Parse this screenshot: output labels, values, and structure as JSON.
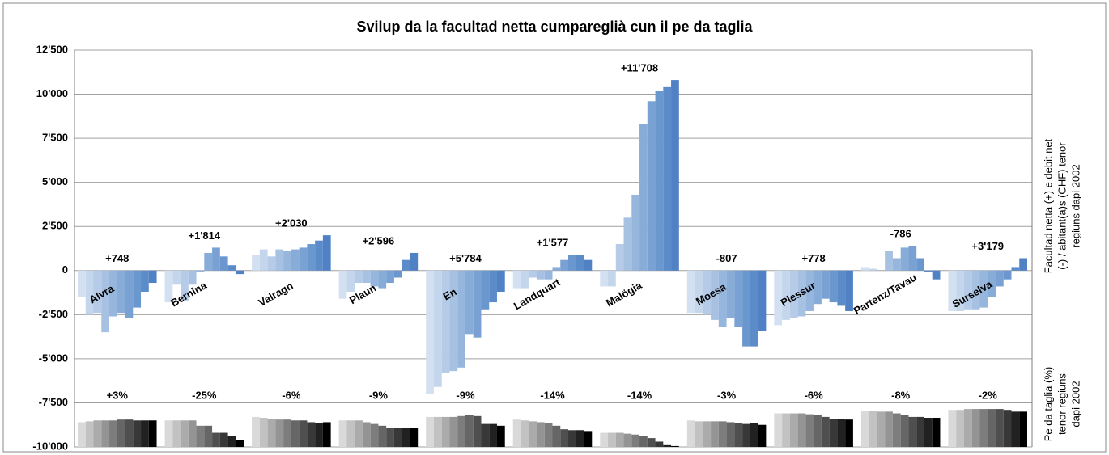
{
  "chart_data": {
    "type": "bar",
    "title": "Svilup da la facultad netta cumpareglià cun il pe da taglia",
    "ylim": [
      -10000,
      12500
    ],
    "yticks": [
      {
        "value": 12500,
        "label": "12'500"
      },
      {
        "value": 10000,
        "label": "10'000"
      },
      {
        "value": 7500,
        "label": "7'500"
      },
      {
        "value": 5000,
        "label": "5'000"
      },
      {
        "value": 2500,
        "label": "2'500"
      },
      0,
      {
        "value": -2500,
        "label": "-2'500"
      },
      {
        "value": -5000,
        "label": "-5'000"
      },
      {
        "value": -7500,
        "label": "-7'500"
      },
      {
        "value": -10000,
        "label": "-10'000"
      }
    ],
    "grid": true,
    "y_label_lines": [
      "Facultad netta (+) e debit net",
      "(-) / abitant(a)s (CHF) tenor",
      "regiuns dapi 2002"
    ],
    "tax_label_lines": [
      "Pe da taglia (%)",
      "tenor regiuns",
      "dapi 2002"
    ],
    "categories": [
      "Alvra",
      "Bernina",
      "Valragn",
      "Plaun",
      "En",
      "Landquart",
      "Malögia",
      "Moesa",
      "Plessur",
      "Partenz/Tavau",
      "Surselva"
    ],
    "annotations": [
      "+748",
      "+1'814",
      "+2'030",
      "+2'596",
      "+5'784",
      "+1'577",
      "+11'708",
      "-807",
      "+778",
      "-786",
      "+3'179"
    ],
    "colors": [
      "#d3e0f1",
      "#c4d6ec",
      "#b5cbe7",
      "#a6c1e2",
      "#97b6dd",
      "#88acd8",
      "#79a1d3",
      "#6a97ce",
      "#5b8cc9",
      "#4f81c4"
    ],
    "values": [
      [
        -1500,
        -2500,
        -2400,
        -3500,
        -2600,
        -2400,
        -2700,
        -2100,
        -1200,
        -700
      ],
      [
        -1800,
        -800,
        -1700,
        -800,
        -100,
        1000,
        1300,
        800,
        300,
        -200
      ],
      [
        900,
        1200,
        800,
        1200,
        1100,
        1200,
        1300,
        1500,
        1700,
        2000
      ],
      [
        -1600,
        -1200,
        -700,
        -700,
        -900,
        -1000,
        -700,
        -400,
        600,
        1000
      ],
      [
        -7000,
        -6600,
        -5800,
        -5700,
        -5500,
        -3600,
        -3800,
        -2200,
        -1800,
        -1200
      ],
      [
        -1000,
        -1000,
        -400,
        -500,
        -500,
        200,
        600,
        900,
        900,
        600
      ],
      [
        -900,
        -900,
        1500,
        3000,
        4300,
        8300,
        9600,
        10200,
        10400,
        10800
      ],
      [
        -2400,
        -2400,
        -2500,
        -2800,
        -3200,
        -2700,
        -3200,
        -4300,
        -4300,
        -3400
      ],
      [
        -3100,
        -2800,
        -2700,
        -2600,
        -2300,
        -1900,
        -1600,
        -1800,
        -2000,
        -2300
      ],
      [
        200,
        100,
        0,
        1100,
        700,
        1300,
        1400,
        700,
        -100,
        -500
      ],
      [
        -2300,
        -2300,
        -2200,
        -2200,
        -2100,
        -1500,
        -900,
        -500,
        200,
        700
      ]
    ],
    "tax_labels": [
      "+3%",
      "-25%",
      "-6%",
      "-9%",
      "-9%",
      "-14%",
      "-14%",
      "-3%",
      "-6%",
      "-8%",
      "-2%"
    ],
    "tax_colors": [
      "#d9d9d9",
      "#c2c2c2",
      "#ababab",
      "#949494",
      "#7d7d7d",
      "#666666",
      "#4f4f4f",
      "#383838",
      "#212121",
      "#000000"
    ],
    "tax_values": [
      [
        -8600,
        -8550,
        -8500,
        -8500,
        -8500,
        -8450,
        -8450,
        -8500,
        -8500,
        -8500
      ],
      [
        -8500,
        -8500,
        -8500,
        -8500,
        -8800,
        -8800,
        -9200,
        -9200,
        -9400,
        -9600
      ],
      [
        -8300,
        -8350,
        -8400,
        -8450,
        -8450,
        -8500,
        -8500,
        -8600,
        -8650,
        -8600
      ],
      [
        -8500,
        -8500,
        -8500,
        -8600,
        -8700,
        -8800,
        -8900,
        -8900,
        -8900,
        -8900
      ],
      [
        -8300,
        -8300,
        -8300,
        -8300,
        -8250,
        -8200,
        -8250,
        -8700,
        -8700,
        -8800
      ],
      [
        -8450,
        -8500,
        -8550,
        -8600,
        -8650,
        -8800,
        -9000,
        -9050,
        -9050,
        -9100
      ],
      [
        -9200,
        -9200,
        -9200,
        -9250,
        -9300,
        -9400,
        -9500,
        -9700,
        -9900,
        -9950
      ],
      [
        -8500,
        -8550,
        -8550,
        -8550,
        -8550,
        -8600,
        -8650,
        -8700,
        -8650,
        -8750
      ],
      [
        -8100,
        -8100,
        -8100,
        -8100,
        -8150,
        -8200,
        -8300,
        -8400,
        -8400,
        -8450
      ],
      [
        -7950,
        -7950,
        -8000,
        -8000,
        -8100,
        -8200,
        -8300,
        -8300,
        -8350,
        -8350
      ],
      [
        -7900,
        -7900,
        -7850,
        -7850,
        -7850,
        -7850,
        -7850,
        -7900,
        -8000,
        -8000
      ]
    ]
  }
}
